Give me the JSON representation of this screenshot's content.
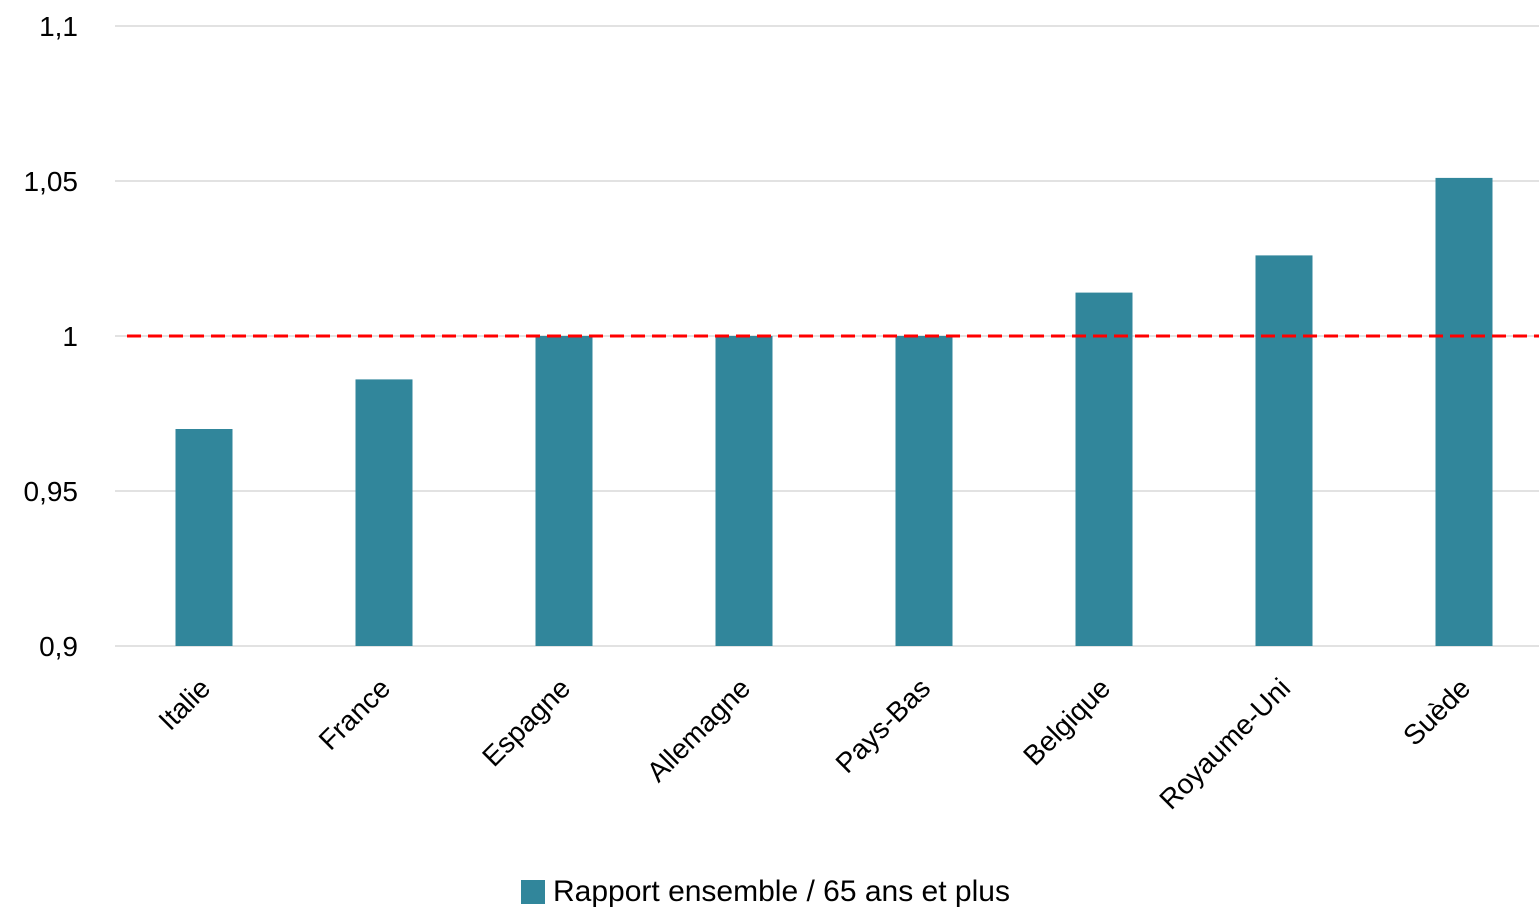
{
  "chart_data": {
    "type": "bar",
    "categories": [
      "Italie",
      "France",
      "Espagne",
      "Allemagne",
      "Pays-Bas",
      "Belgique",
      "Royaume-Uni",
      "Suède"
    ],
    "series": [
      {
        "name": "Rapport ensemble / 65 ans et plus",
        "values": [
          0.97,
          0.986,
          1.0,
          1.0,
          1.0,
          1.014,
          1.026,
          1.051
        ]
      }
    ],
    "ylim": [
      0.9,
      1.1
    ],
    "yticks": [
      0.9,
      0.95,
      1.0,
      1.05,
      1.1
    ],
    "ytick_labels": [
      "0,9",
      "0,95",
      "1",
      "1,05",
      "1,1"
    ],
    "reference_line": {
      "value": 1.0,
      "style": "dashed",
      "color": "#ff0000"
    },
    "colors": {
      "bar": "#31869b",
      "grid": "#d9d9d9"
    },
    "grid": true,
    "legend_position": "bottom"
  }
}
